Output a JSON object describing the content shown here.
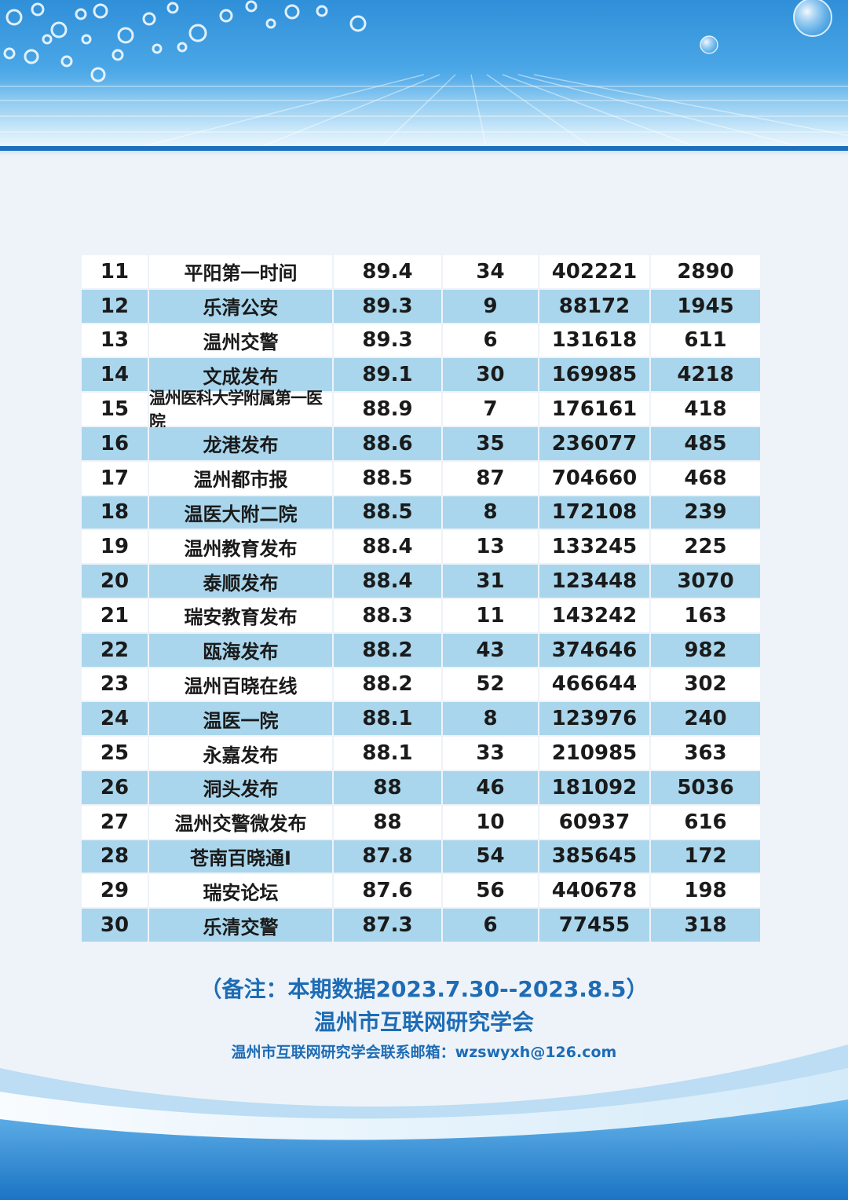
{
  "colors": {
    "banner_blue": "#2f8fd8",
    "row_alt": "#a9d6ec",
    "text_blue": "#1d6cb5"
  },
  "table": {
    "rows": [
      {
        "rank": "11",
        "name": "平阳第一时间",
        "score": "89.4",
        "posts": "34",
        "reads": "402221",
        "likes": "2890"
      },
      {
        "rank": "12",
        "name": "乐清公安",
        "score": "89.3",
        "posts": "9",
        "reads": "88172",
        "likes": "1945"
      },
      {
        "rank": "13",
        "name": "温州交警",
        "score": "89.3",
        "posts": "6",
        "reads": "131618",
        "likes": "611"
      },
      {
        "rank": "14",
        "name": "文成发布",
        "score": "89.1",
        "posts": "30",
        "reads": "169985",
        "likes": "4218"
      },
      {
        "rank": "15",
        "name": "温州医科大学附属第一医院",
        "score": "88.9",
        "posts": "7",
        "reads": "176161",
        "likes": "418"
      },
      {
        "rank": "16",
        "name": "龙港发布",
        "score": "88.6",
        "posts": "35",
        "reads": "236077",
        "likes": "485"
      },
      {
        "rank": "17",
        "name": "温州都市报",
        "score": "88.5",
        "posts": "87",
        "reads": "704660",
        "likes": "468"
      },
      {
        "rank": "18",
        "name": "温医大附二院",
        "score": "88.5",
        "posts": "8",
        "reads": "172108",
        "likes": "239"
      },
      {
        "rank": "19",
        "name": "温州教育发布",
        "score": "88.4",
        "posts": "13",
        "reads": "133245",
        "likes": "225"
      },
      {
        "rank": "20",
        "name": "泰顺发布",
        "score": "88.4",
        "posts": "31",
        "reads": "123448",
        "likes": "3070"
      },
      {
        "rank": "21",
        "name": "瑞安教育发布",
        "score": "88.3",
        "posts": "11",
        "reads": "143242",
        "likes": "163"
      },
      {
        "rank": "22",
        "name": "瓯海发布",
        "score": "88.2",
        "posts": "43",
        "reads": "374646",
        "likes": "982"
      },
      {
        "rank": "23",
        "name": "温州百晓在线",
        "score": "88.2",
        "posts": "52",
        "reads": "466644",
        "likes": "302"
      },
      {
        "rank": "24",
        "name": "温医一院",
        "score": "88.1",
        "posts": "8",
        "reads": "123976",
        "likes": "240"
      },
      {
        "rank": "25",
        "name": "永嘉发布",
        "score": "88.1",
        "posts": "33",
        "reads": "210985",
        "likes": "363"
      },
      {
        "rank": "26",
        "name": "洞头发布",
        "score": "88",
        "posts": "46",
        "reads": "181092",
        "likes": "5036"
      },
      {
        "rank": "27",
        "name": "温州交警微发布",
        "score": "88",
        "posts": "10",
        "reads": "60937",
        "likes": "616"
      },
      {
        "rank": "28",
        "name": "苍南百晓通I",
        "score": "87.8",
        "posts": "54",
        "reads": "385645",
        "likes": "172"
      },
      {
        "rank": "29",
        "name": "瑞安论坛",
        "score": "87.6",
        "posts": "56",
        "reads": "440678",
        "likes": "198"
      },
      {
        "rank": "30",
        "name": "乐清交警",
        "score": "87.3",
        "posts": "6",
        "reads": "77455",
        "likes": "318"
      }
    ]
  },
  "footer": {
    "note": "（备注：本期数据2023.7.30--2023.8.5）",
    "org": "温州市互联网研究学会",
    "contact": "温州市互联网研究学会联系邮箱：wzswyxh@126.com"
  }
}
